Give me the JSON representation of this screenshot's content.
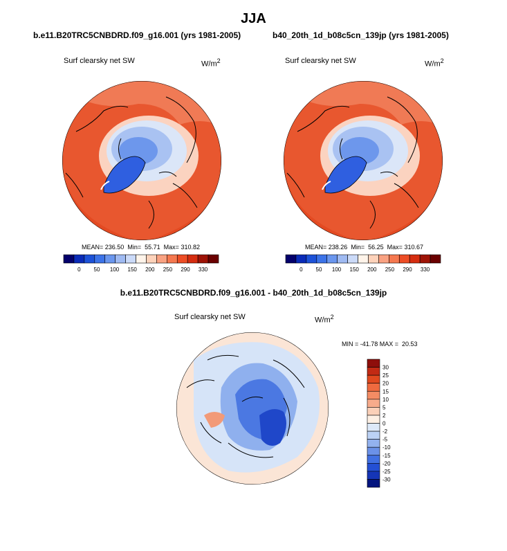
{
  "page": {
    "season": "JJA"
  },
  "chart_data": [
    {
      "type": "heatmap",
      "projection": "north polar stereographic",
      "title": "b.e11.B20TRC5CNBDRD.f09_g16.001 (yrs 1981-2005)",
      "variable": "Surf clearsky net SW",
      "units_base": "W/m",
      "units_exp": "2",
      "stats": {
        "mean_label": "MEAN=",
        "mean": "236.50",
        "min_label": "Min=",
        "min": "55.71",
        "max_label": "Max=",
        "max": "310.82"
      },
      "colorbar": {
        "tick_labels": [
          "0",
          "50",
          "100",
          "150",
          "200",
          "250",
          "290",
          "330"
        ],
        "colors": [
          "#03006b",
          "#0a2bb8",
          "#1d52d8",
          "#3c73e8",
          "#6a96ee",
          "#9fbaf2",
          "#cbdaf8",
          "#fff4ea",
          "#fdd2ba",
          "#f9a282",
          "#f5784f",
          "#ed4d25",
          "#d52d10",
          "#9e1306",
          "#6a0000"
        ]
      }
    },
    {
      "type": "heatmap",
      "projection": "north polar stereographic",
      "title": "b40_20th_1d_b08c5cn_139jp (yrs 1981-2005)",
      "variable": "Surf clearsky net SW",
      "units_base": "W/m",
      "units_exp": "2",
      "stats": {
        "mean_label": "MEAN=",
        "mean": "238.26",
        "min_label": "Min=",
        "min": "56.25",
        "max_label": "Max=",
        "max": "310.67"
      },
      "colorbar": {
        "tick_labels": [
          "0",
          "50",
          "100",
          "150",
          "200",
          "250",
          "290",
          "330"
        ],
        "colors": [
          "#03006b",
          "#0a2bb8",
          "#1d52d8",
          "#3c73e8",
          "#6a96ee",
          "#9fbaf2",
          "#cbdaf8",
          "#fff4ea",
          "#fdd2ba",
          "#f9a282",
          "#f5784f",
          "#ed4d25",
          "#d52d10",
          "#9e1306",
          "#6a0000"
        ]
      }
    },
    {
      "type": "heatmap",
      "projection": "north polar stereographic",
      "title": "b.e11.B20TRC5CNBDRD.f09_g16.001 - b40_20th_1d_b08c5cn_139jp",
      "variable": "Surf clearsky net SW",
      "units_base": "W/m",
      "units_exp": "2",
      "minmax_label": "MIN = -41.78 MAX =  20.53",
      "colorbar": {
        "tick_labels": [
          "30",
          "25",
          "20",
          "15",
          "10",
          "5",
          "2",
          "0",
          "-2",
          "-5",
          "-10",
          "-15",
          "-20",
          "-25",
          "-30"
        ],
        "colors": [
          "#8e0e0b",
          "#c22a14",
          "#e0491f",
          "#ef6a3f",
          "#f48c64",
          "#f7ab8b",
          "#fbd0b8",
          "#fdf0e4",
          "#dde9f9",
          "#bcd2f5",
          "#93b2ef",
          "#6b91e8",
          "#4170e2",
          "#2450d4",
          "#1535b6",
          "#04157f"
        ]
      }
    }
  ]
}
